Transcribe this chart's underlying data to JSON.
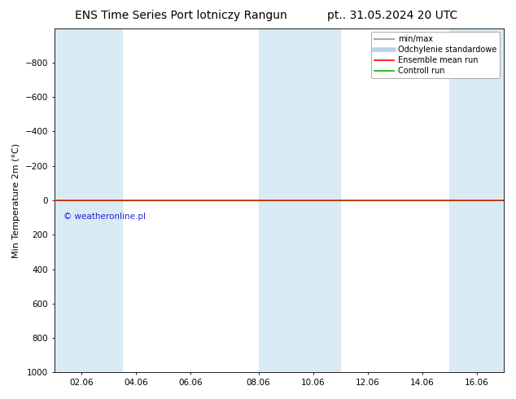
{
  "title_left": "ENS Time Series Port lotniczy Rangun",
  "title_right": "pt.. 31.05.2024 20 UTC",
  "ylabel": "Min Temperature 2m (°C)",
  "watermark": "© weatheronline.pl",
  "ylim_bottom": 1000,
  "ylim_top": -1000,
  "yticks": [
    -800,
    -600,
    -400,
    -200,
    0,
    200,
    400,
    600,
    800,
    1000
  ],
  "xtick_labels": [
    "02.06",
    "04.06",
    "06.06",
    "08.06",
    "10.06",
    "12.06",
    "14.06",
    "16.06"
  ],
  "bg_color": "#ffffff",
  "plot_bg_color": "#ffffff",
  "band_color": "#daeaf5",
  "legend_items": [
    "min/max",
    "Odchylenie standardowe",
    "Ensemble mean run",
    "Controll run"
  ],
  "line_y_value": 0.0,
  "red_line_color": "#ff0000",
  "green_line_color": "#00bb00",
  "font_size_title": 10,
  "font_size_axis": 8,
  "font_size_tick": 7.5,
  "font_size_legend": 7,
  "font_size_watermark": 7.5,
  "band_starts": [
    0.0,
    7.5,
    14.5
  ],
  "band_ends": [
    2.5,
    10.5,
    16.5
  ],
  "xlim_left": 0.0,
  "xlim_right": 16.5,
  "xtick_positions": [
    1.0,
    3.0,
    5.0,
    7.5,
    9.5,
    11.5,
    13.5,
    15.5
  ],
  "watermark_color": "#0000cc"
}
